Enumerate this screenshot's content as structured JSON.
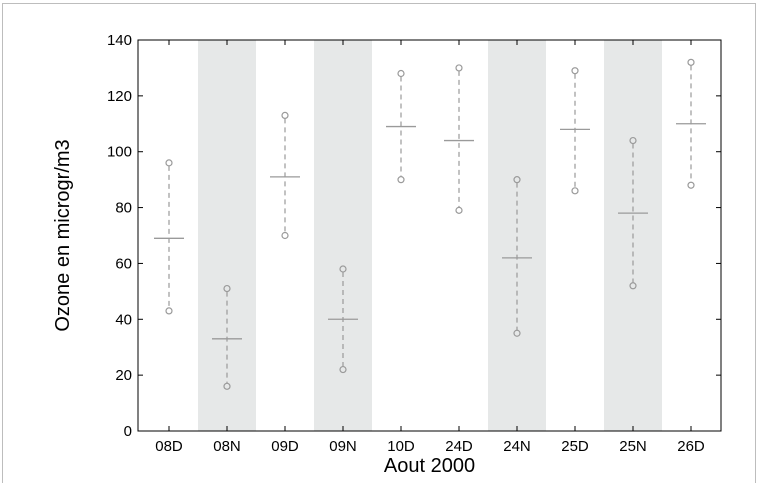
{
  "chart_data": {
    "type": "errorbar",
    "title": "",
    "xlabel": "Aout 2000",
    "ylabel": "Ozone en microgr/m3",
    "ylim": [
      0,
      140
    ],
    "yticks": [
      0,
      20,
      40,
      60,
      80,
      100,
      120,
      140
    ],
    "grid": false,
    "categories": [
      "08D",
      "08N",
      "09D",
      "09N",
      "10D",
      "24D",
      "24N",
      "25D",
      "25N",
      "26D"
    ],
    "night_shaded": [
      false,
      true,
      false,
      true,
      false,
      false,
      true,
      false,
      true,
      false
    ],
    "mean": [
      69,
      33,
      91,
      40,
      109,
      104,
      62,
      108,
      78,
      110
    ],
    "upper": [
      96,
      51,
      113,
      58,
      128,
      130,
      90,
      129,
      104,
      132
    ],
    "lower": [
      43,
      16,
      70,
      22,
      90,
      79,
      35,
      86,
      52,
      88
    ],
    "colors": {
      "shade": "#e6e8e8",
      "marker": "#9a9a9a",
      "axis": "#000000"
    }
  }
}
